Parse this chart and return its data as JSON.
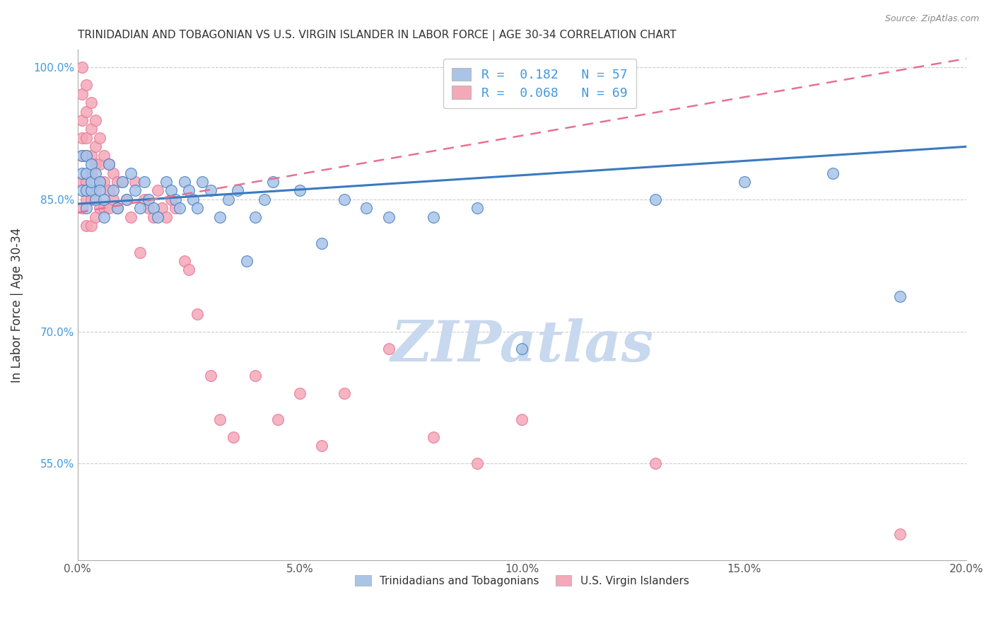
{
  "title": "TRINIDADIAN AND TOBAGONIAN VS U.S. VIRGIN ISLANDER IN LABOR FORCE | AGE 30-34 CORRELATION CHART",
  "source": "Source: ZipAtlas.com",
  "ylabel": "In Labor Force | Age 30-34",
  "xlim": [
    0.0,
    0.2
  ],
  "ylim": [
    0.44,
    1.02
  ],
  "xticks": [
    0.0,
    0.05,
    0.1,
    0.15,
    0.2
  ],
  "xtick_labels": [
    "0.0%",
    "5.0%",
    "10.0%",
    "15.0%",
    "20.0%"
  ],
  "yticks": [
    0.55,
    0.7,
    0.85,
    1.0
  ],
  "ytick_labels": [
    "55.0%",
    "70.0%",
    "85.0%",
    "100.0%"
  ],
  "R_blue": 0.182,
  "N_blue": 57,
  "R_pink": 0.068,
  "N_pink": 69,
  "blue_color": "#aac4e8",
  "pink_color": "#f4a8b8",
  "blue_edge_color": "#3a7abf",
  "pink_edge_color": "#e87090",
  "blue_line_color": "#3a7abf",
  "pink_line_color": "#e87090",
  "legend_label_blue": "Trinidadians and Tobagonians",
  "legend_label_pink": "U.S. Virgin Islanders",
  "watermark": "ZIPatlas",
  "watermark_color": "#c8d8ee",
  "blue_x": [
    0.001,
    0.001,
    0.001,
    0.002,
    0.002,
    0.002,
    0.002,
    0.003,
    0.003,
    0.003,
    0.004,
    0.004,
    0.005,
    0.005,
    0.006,
    0.006,
    0.007,
    0.008,
    0.009,
    0.01,
    0.011,
    0.012,
    0.013,
    0.014,
    0.015,
    0.016,
    0.017,
    0.018,
    0.02,
    0.021,
    0.022,
    0.023,
    0.024,
    0.025,
    0.026,
    0.027,
    0.028,
    0.03,
    0.032,
    0.034,
    0.036,
    0.038,
    0.04,
    0.042,
    0.044,
    0.05,
    0.055,
    0.06,
    0.065,
    0.07,
    0.08,
    0.09,
    0.1,
    0.13,
    0.15,
    0.17,
    0.185
  ],
  "blue_y": [
    0.88,
    0.86,
    0.9,
    0.86,
    0.84,
    0.88,
    0.9,
    0.86,
    0.87,
    0.89,
    0.85,
    0.88,
    0.87,
    0.86,
    0.85,
    0.83,
    0.89,
    0.86,
    0.84,
    0.87,
    0.85,
    0.88,
    0.86,
    0.84,
    0.87,
    0.85,
    0.84,
    0.83,
    0.87,
    0.86,
    0.85,
    0.84,
    0.87,
    0.86,
    0.85,
    0.84,
    0.87,
    0.86,
    0.83,
    0.85,
    0.86,
    0.78,
    0.83,
    0.85,
    0.87,
    0.86,
    0.8,
    0.85,
    0.84,
    0.83,
    0.83,
    0.84,
    0.68,
    0.85,
    0.87,
    0.88,
    0.74
  ],
  "pink_x": [
    0.001,
    0.001,
    0.001,
    0.001,
    0.001,
    0.001,
    0.001,
    0.002,
    0.002,
    0.002,
    0.002,
    0.002,
    0.002,
    0.002,
    0.003,
    0.003,
    0.003,
    0.003,
    0.003,
    0.003,
    0.004,
    0.004,
    0.004,
    0.004,
    0.004,
    0.005,
    0.005,
    0.005,
    0.005,
    0.006,
    0.006,
    0.006,
    0.007,
    0.007,
    0.007,
    0.008,
    0.008,
    0.009,
    0.009,
    0.01,
    0.011,
    0.012,
    0.013,
    0.014,
    0.015,
    0.016,
    0.017,
    0.018,
    0.019,
    0.02,
    0.021,
    0.022,
    0.024,
    0.025,
    0.027,
    0.03,
    0.032,
    0.035,
    0.04,
    0.045,
    0.05,
    0.055,
    0.06,
    0.07,
    0.08,
    0.09,
    0.1,
    0.13,
    0.185
  ],
  "pink_y": [
    1.0,
    0.97,
    0.94,
    0.92,
    0.9,
    0.87,
    0.84,
    0.98,
    0.95,
    0.92,
    0.9,
    0.87,
    0.85,
    0.82,
    0.96,
    0.93,
    0.9,
    0.88,
    0.85,
    0.82,
    0.94,
    0.91,
    0.89,
    0.86,
    0.83,
    0.92,
    0.89,
    0.87,
    0.84,
    0.9,
    0.87,
    0.84,
    0.89,
    0.86,
    0.84,
    0.88,
    0.85,
    0.87,
    0.84,
    0.87,
    0.85,
    0.83,
    0.87,
    0.79,
    0.85,
    0.84,
    0.83,
    0.86,
    0.84,
    0.83,
    0.85,
    0.84,
    0.78,
    0.77,
    0.72,
    0.65,
    0.6,
    0.58,
    0.65,
    0.6,
    0.63,
    0.57,
    0.63,
    0.68,
    0.58,
    0.55,
    0.6,
    0.55,
    0.47
  ]
}
